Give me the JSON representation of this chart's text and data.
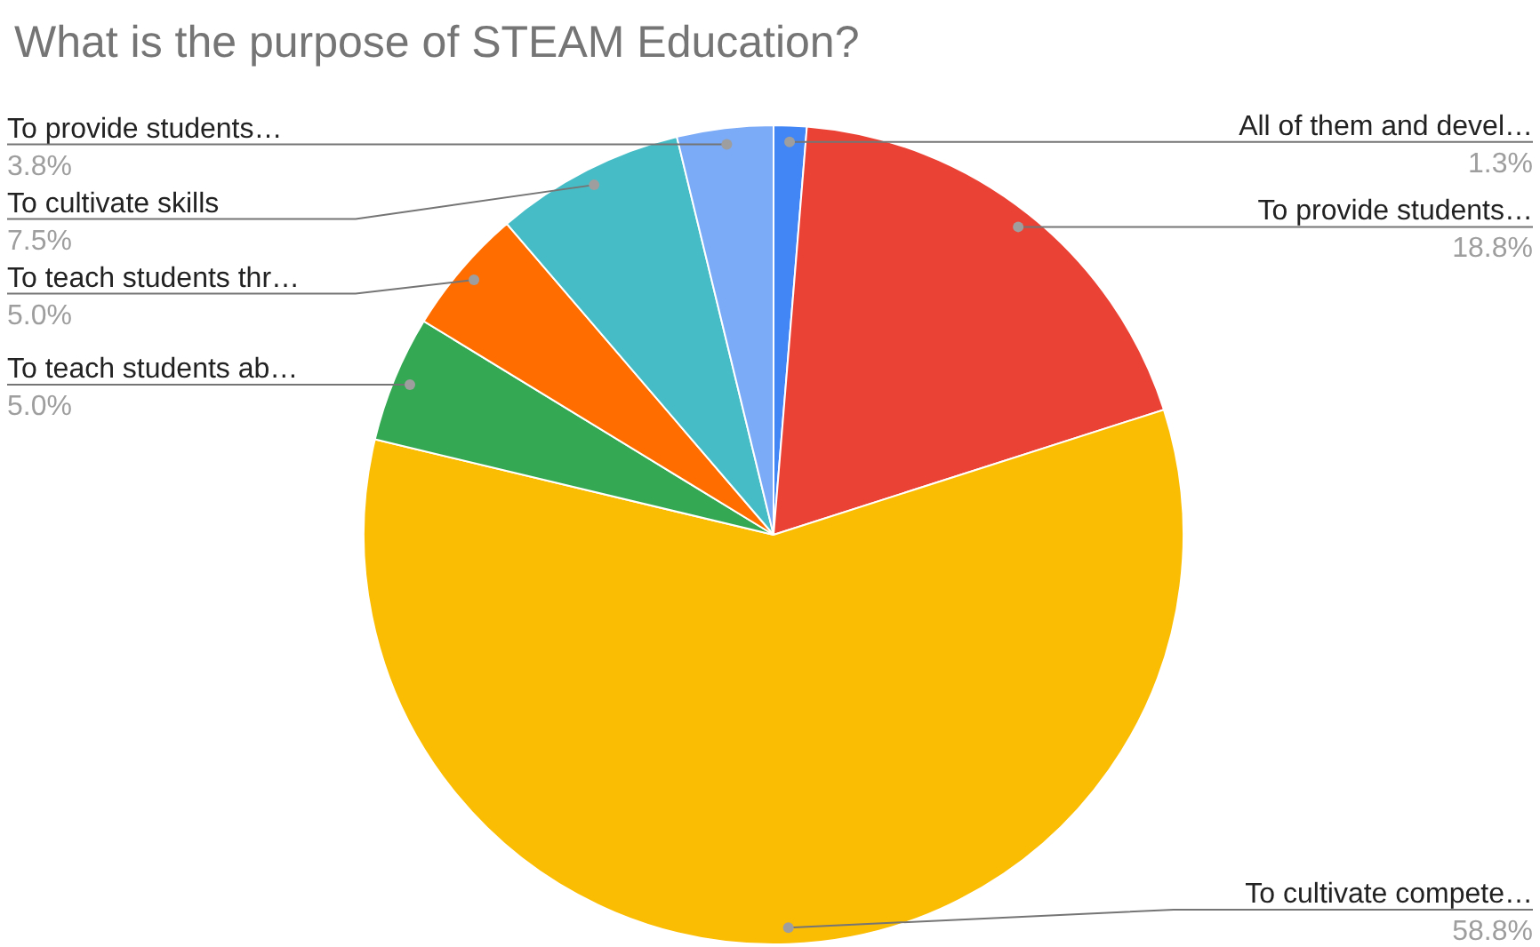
{
  "chart_data": {
    "type": "pie",
    "title": "What is the purpose of STEAM Education?",
    "categories": [
      "All of them and devel…",
      "To provide students…",
      "To cultivate compete…",
      "To teach students ab…",
      "To teach students thr…",
      "To cultivate skills",
      "To provide students…"
    ],
    "values": [
      1.3,
      18.8,
      58.8,
      5.0,
      5.0,
      7.5,
      3.8
    ],
    "value_labels": [
      "1.3%",
      "18.8%",
      "58.8%",
      "5.0%",
      "5.0%",
      "7.5%",
      "3.8%"
    ],
    "colors": [
      "#4285f4",
      "#ea4335",
      "#fbbc04",
      "#34a853",
      "#ff6d01",
      "#46bdc6",
      "#7baaf7"
    ],
    "legend": false
  }
}
